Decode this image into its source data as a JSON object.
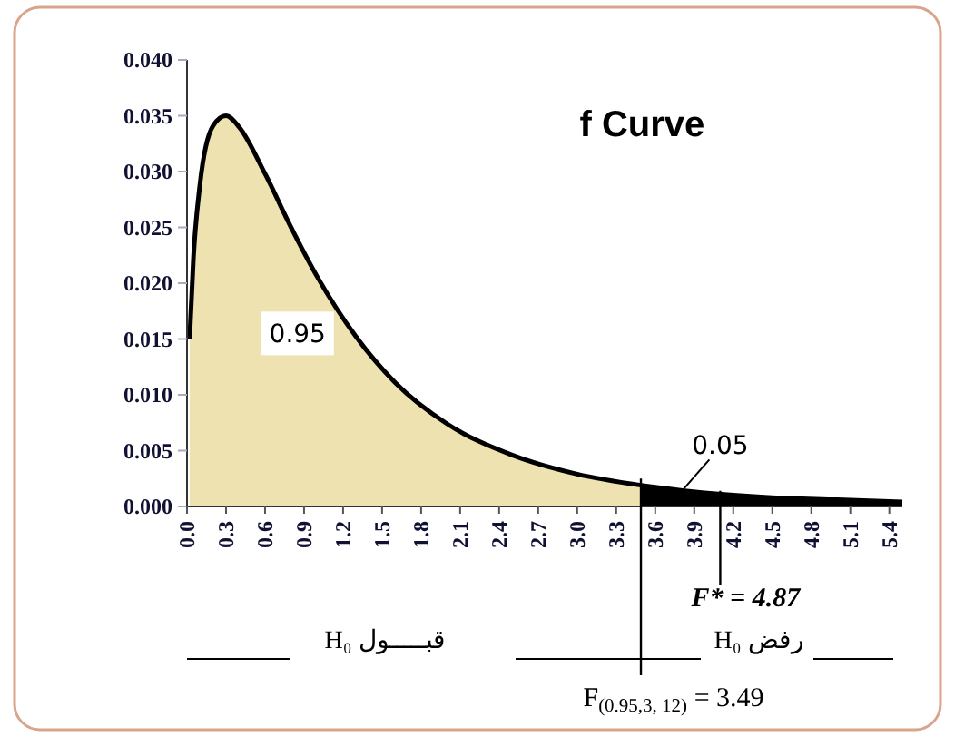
{
  "chart_data": {
    "type": "area",
    "title": "f Curve",
    "xlim": [
      0,
      5.5
    ],
    "ylim": [
      0,
      0.04
    ],
    "xticks": [
      {
        "value": 0,
        "label": "0.0"
      },
      {
        "value": 0.3,
        "label": "0.3"
      },
      {
        "value": 0.6,
        "label": "0.6"
      },
      {
        "value": 0.9,
        "label": "0.9"
      },
      {
        "value": 1.2,
        "label": "1.2"
      },
      {
        "value": 1.5,
        "label": "1.5"
      },
      {
        "value": 1.8,
        "label": "1.8"
      },
      {
        "value": 2.1,
        "label": "2.1"
      },
      {
        "value": 2.4,
        "label": "2.4"
      },
      {
        "value": 2.7,
        "label": "2.7"
      },
      {
        "value": 3,
        "label": "3.0"
      },
      {
        "value": 3.3,
        "label": "3.3"
      },
      {
        "value": 3.6,
        "label": "3.6"
      },
      {
        "value": 3.9,
        "label": "3.9"
      },
      {
        "value": 4.2,
        "label": "4.2"
      },
      {
        "value": 4.5,
        "label": "4.5"
      },
      {
        "value": 4.8,
        "label": "4.8"
      },
      {
        "value": 5.1,
        "label": "5.1"
      },
      {
        "value": 5.4,
        "label": "5.4"
      }
    ],
    "yticks": [
      {
        "value": 0,
        "label": "0.000"
      },
      {
        "value": 0.005,
        "label": "0.005"
      },
      {
        "value": 0.01,
        "label": "0.010"
      },
      {
        "value": 0.015,
        "label": "0.015"
      },
      {
        "value": 0.02,
        "label": "0.020"
      },
      {
        "value": 0.025,
        "label": "0.025"
      },
      {
        "value": 0.03,
        "label": "0.030"
      },
      {
        "value": 0.035,
        "label": "0.035"
      },
      {
        "value": 0.04,
        "label": "0.040"
      }
    ],
    "series": [
      {
        "color": "#eee2b1",
        "x": [
          0.02,
          0.05,
          0.1,
          0.2,
          0.3,
          0.4,
          0.6,
          0.8,
          1.0,
          1.3,
          1.6,
          2.0,
          2.5,
          3.0,
          3.49
        ],
        "values": [
          0.015,
          0.0224,
          0.0289,
          0.0341,
          0.035,
          0.034,
          0.0298,
          0.025,
          0.0206,
          0.0152,
          0.0111,
          0.0074,
          0.0046,
          0.0029,
          0.0019
        ]
      },
      {
        "color": "#000000",
        "x": [
          3.49,
          4.0,
          4.5,
          5.0,
          5.5
        ],
        "values": [
          0.0019,
          0.0012,
          0.0008,
          0.0006,
          0.0004
        ]
      }
    ],
    "ref_lines": [
      {
        "axis": "x",
        "value": 3.49,
        "label": "F$_{(0.95,3, 12)}$ = 3.49"
      }
    ],
    "annotations": [
      {
        "text": "0.95",
        "x": 0.85,
        "y": 0.0155
      },
      {
        "text": "F* = 4.87",
        "x": 4.1,
        "y": 0
      },
      "0.05",
      "H₀ قبـــــول",
      "H₀ رفض"
    ],
    "grid": false
  }
}
